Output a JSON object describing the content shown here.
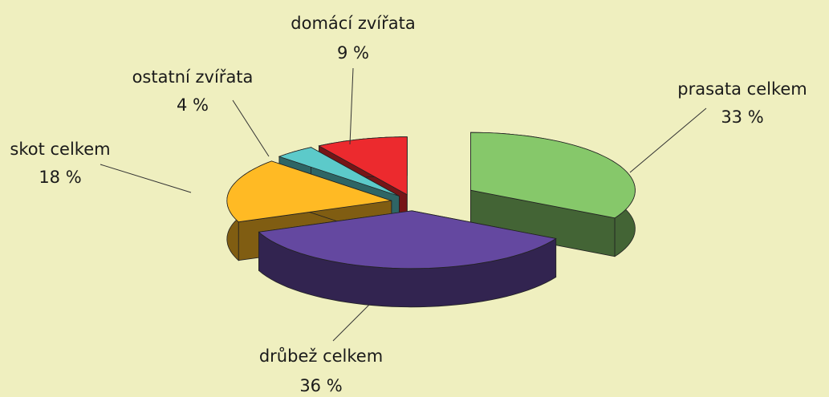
{
  "chart_data": {
    "type": "pie3d",
    "categories": [
      "prasata celkem",
      "drůbež celkem",
      "skot celkem",
      "ostatní zvířata",
      "domácí zvířata"
    ],
    "values": [
      33,
      36,
      18,
      4,
      9
    ],
    "value_labels": [
      "33 %",
      "36 %",
      "18 %",
      "4 %",
      "9 %"
    ],
    "colors": [
      "#86c86a",
      "#6448a0",
      "#ffba24",
      "#5ccaca",
      "#ec2a2e"
    ]
  }
}
